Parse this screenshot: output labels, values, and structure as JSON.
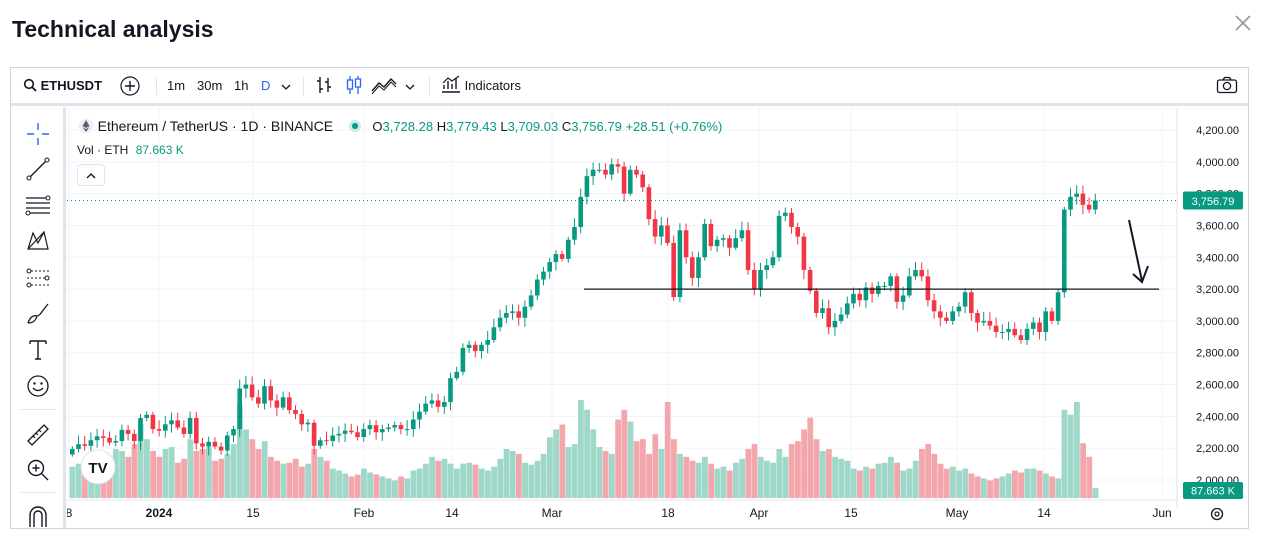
{
  "dialog": {
    "title": "Technical analysis",
    "close_icon": "close-icon"
  },
  "toolbar": {
    "symbol": "ETHUSDT",
    "intervals": [
      "1m",
      "30m",
      "1h",
      "D"
    ],
    "active_interval": "D",
    "indicators_label": "Indicators",
    "accent": "#2962ff"
  },
  "legend": {
    "symbol_desc": "Ethereum / TetherUS · 1D · BINANCE",
    "open_label": "O",
    "open": "3,728.28",
    "high_label": "H",
    "high": "3,779.43",
    "low_label": "L",
    "low": "3,709.03",
    "close_label": "C",
    "close": "3,756.79",
    "change": "+28.51 (+0.76%)",
    "vol_label": "Vol · ETH",
    "vol_value": "87.663 K"
  },
  "colors": {
    "up": "#089981",
    "down": "#f23645",
    "up_vol": "#9fd7c9",
    "down_vol": "#f4a6ad",
    "grid": "#f0f3fa",
    "text": "#131722"
  },
  "chart_data": {
    "type": "candlestick",
    "y_ticks": [
      "4,200.00",
      "4,000.00",
      "3,800.00",
      "3,600.00",
      "3,400.00",
      "3,200.00",
      "3,000.00",
      "2,800.00",
      "2,600.00",
      "2,400.00",
      "2,200.00",
      "2,000.00"
    ],
    "ylim": [
      2000,
      4200
    ],
    "x_ticks": [
      "8",
      "2024",
      "15",
      "Feb",
      "14",
      "Mar",
      "18",
      "Apr",
      "15",
      "May",
      "14",
      "Jun"
    ],
    "last_price_label": "3,756.79",
    "last_volume_label": "87.663 K",
    "horizontal_line": 3200,
    "closes": [
      2195,
      2225,
      2215,
      2250,
      2275,
      2265,
      2235,
      2245,
      2315,
      2290,
      2245,
      2390,
      2410,
      2320,
      2310,
      2350,
      2375,
      2330,
      2290,
      2390,
      2230,
      2210,
      2240,
      2210,
      2185,
      2280,
      2320,
      2575,
      2600,
      2520,
      2480,
      2590,
      2500,
      2455,
      2520,
      2440,
      2415,
      2350,
      2360,
      2215,
      2250,
      2245,
      2280,
      2290,
      2310,
      2300,
      2270,
      2320,
      2345,
      2300,
      2320,
      2330,
      2345,
      2320,
      2320,
      2380,
      2430,
      2480,
      2500,
      2460,
      2490,
      2640,
      2680,
      2830,
      2850,
      2810,
      2850,
      2880,
      2960,
      3020,
      3050,
      3060,
      3020,
      3090,
      3160,
      3260,
      3310,
      3370,
      3420,
      3390,
      3510,
      3590,
      3780,
      3910,
      3950,
      3950,
      3920,
      3985,
      3970,
      3800,
      3950,
      3920,
      3840,
      3640,
      3530,
      3600,
      3490,
      3150,
      3570,
      3400,
      3270,
      3400,
      3610,
      3470,
      3510,
      3520,
      3460,
      3520,
      3570,
      3320,
      3200,
      3320,
      3350,
      3400,
      3660,
      3680,
      3590,
      3530,
      3320,
      3190,
      3050,
      3080,
      2960,
      3000,
      3040,
      3110,
      3170,
      3130,
      3210,
      3170,
      3220,
      3220,
      3280,
      3120,
      3160,
      3280,
      3320,
      3280,
      3130,
      3060,
      3020,
      3000,
      3060,
      3090,
      3180,
      3050,
      2990,
      3000,
      2970,
      2930,
      2930,
      2950,
      2910,
      2880,
      2950,
      2990,
      2930,
      3060,
      3000,
      3180,
      3700,
      3780,
      3800,
      3730,
      3700,
      3757
    ],
    "volumes": [
      0.32,
      0.35,
      0.33,
      0.42,
      0.45,
      0.38,
      0.4,
      0.5,
      0.48,
      0.42,
      0.55,
      0.75,
      0.6,
      0.48,
      0.42,
      0.5,
      0.52,
      0.36,
      0.4,
      0.6,
      0.48,
      0.5,
      0.52,
      0.38,
      0.4,
      0.45,
      0.55,
      0.95,
      0.7,
      0.6,
      0.5,
      0.58,
      0.42,
      0.38,
      0.35,
      0.36,
      0.4,
      0.32,
      0.35,
      0.5,
      0.42,
      0.38,
      0.3,
      0.28,
      0.25,
      0.22,
      0.24,
      0.3,
      0.26,
      0.24,
      0.22,
      0.2,
      0.18,
      0.22,
      0.2,
      0.28,
      0.3,
      0.35,
      0.42,
      0.38,
      0.4,
      0.35,
      0.3,
      0.35,
      0.36,
      0.34,
      0.3,
      0.28,
      0.32,
      0.4,
      0.5,
      0.48,
      0.45,
      0.36,
      0.34,
      0.38,
      0.45,
      0.62,
      0.7,
      0.75,
      0.52,
      0.55,
      1.0,
      0.9,
      0.7,
      0.52,
      0.48,
      0.45,
      0.8,
      0.9,
      0.78,
      0.58,
      0.6,
      0.45,
      0.65,
      0.5,
      0.98,
      0.6,
      0.45,
      0.42,
      0.38,
      0.36,
      0.42,
      0.35,
      0.3,
      0.32,
      0.28,
      0.36,
      0.4,
      0.5,
      0.55,
      0.42,
      0.38,
      0.36,
      0.5,
      0.42,
      0.55,
      0.58,
      0.7,
      0.82,
      0.6,
      0.48,
      0.5,
      0.42,
      0.4,
      0.38,
      0.3,
      0.28,
      0.32,
      0.3,
      0.35,
      0.36,
      0.42,
      0.36,
      0.28,
      0.3,
      0.38,
      0.5,
      0.55,
      0.45,
      0.35,
      0.3,
      0.32,
      0.28,
      0.3,
      0.25,
      0.22,
      0.2,
      0.18,
      0.2,
      0.22,
      0.25,
      0.28,
      0.26,
      0.3,
      0.3,
      0.28,
      0.25,
      0.22,
      0.2,
      0.9,
      0.85,
      0.98,
      0.56,
      0.42,
      0.1
    ]
  }
}
